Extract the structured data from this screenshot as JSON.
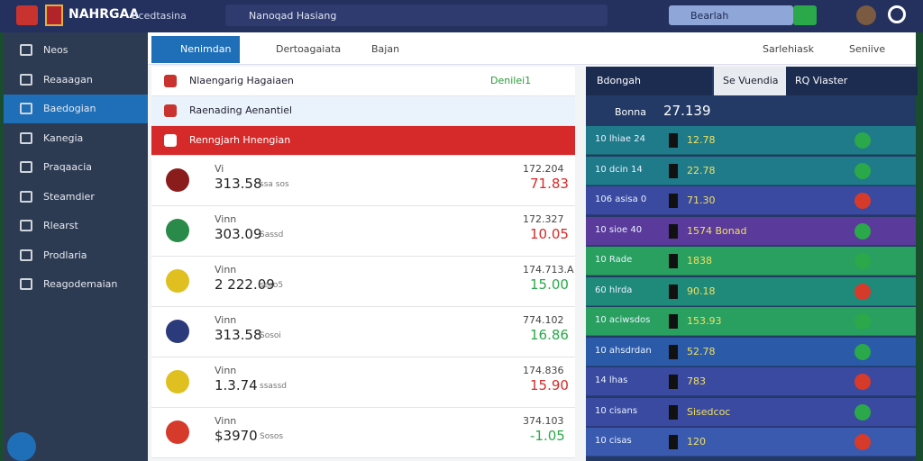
{
  "topbar": {
    "logo": "NAHRGAA",
    "menu": "Bcedtasina",
    "search": "Nanoqad Hasiang",
    "search_right": "Bearlah"
  },
  "sidebar": {
    "items": [
      "Neos",
      "Reaaagan",
      "Baedogian",
      "Kanegia",
      "Praqaacia",
      "Steamdier",
      "Rlearst",
      "Prodlaria",
      "Reagodemaian"
    ]
  },
  "tabs": {
    "items": [
      "Nenimdan",
      "Dertoagaiata",
      "Bajan"
    ],
    "search": "Sarlehiask",
    "settings": "Seniive"
  },
  "list": {
    "headers": [
      {
        "title": "Nlaengarig Hagaiaen",
        "badge": "Denilei1"
      },
      {
        "title": "Raenading Aenantiel"
      },
      {
        "title": "Renngjarh Hnengian"
      }
    ],
    "items": [
      {
        "label": "Vi",
        "amount": "313.58",
        "sub": "ssa sos",
        "ref": "172.204",
        "value": "71.83"
      },
      {
        "label": "Vinn",
        "amount": "303.09",
        "sub": "Sassd",
        "ref": "172.327",
        "value": "10.05"
      },
      {
        "label": "Vinn",
        "amount": "2 222.09",
        "sub": "seso5",
        "ref": "174.713.A",
        "value": "15.00"
      },
      {
        "label": "Vinn",
        "amount": "313.58",
        "sub": "Sosoi",
        "ref": "774.102",
        "value": "16.86"
      },
      {
        "label": "Vinn",
        "amount": "1.3.74",
        "sub": "ssassd",
        "ref": "174.836",
        "value": "15.90"
      },
      {
        "label": "Vinn",
        "amount": "$3970",
        "sub": "Sosos",
        "ref": "374.103",
        "value": "-1.05"
      }
    ]
  },
  "panel": {
    "dropdown": "Bdongah",
    "tabs": [
      "Se Vuendia",
      "RQ Viaster"
    ],
    "summary": {
      "label": "Bonna",
      "value": "27.139"
    },
    "rows": [
      {
        "label": "10 lhiae 24",
        "value": "12.78"
      },
      {
        "label": "10 dcin 14",
        "value": "22.78"
      },
      {
        "label": "106 asisa 0",
        "value": "71.30"
      },
      {
        "label": "10 sioe 40",
        "value": "1574 Bonad"
      },
      {
        "label": "10 Rade",
        "value": "1838"
      },
      {
        "label": "60 hlrda",
        "value": "90.18"
      },
      {
        "label": "10 aciwsdos",
        "value": "153.93"
      },
      {
        "label": "10 ahsdrdan",
        "value": "52.78"
      },
      {
        "label": "14 lhas",
        "value": "783"
      },
      {
        "label": "10 cisans",
        "value": "Sisedcoc"
      },
      {
        "label": "10 cisas",
        "value": "120"
      }
    ]
  }
}
